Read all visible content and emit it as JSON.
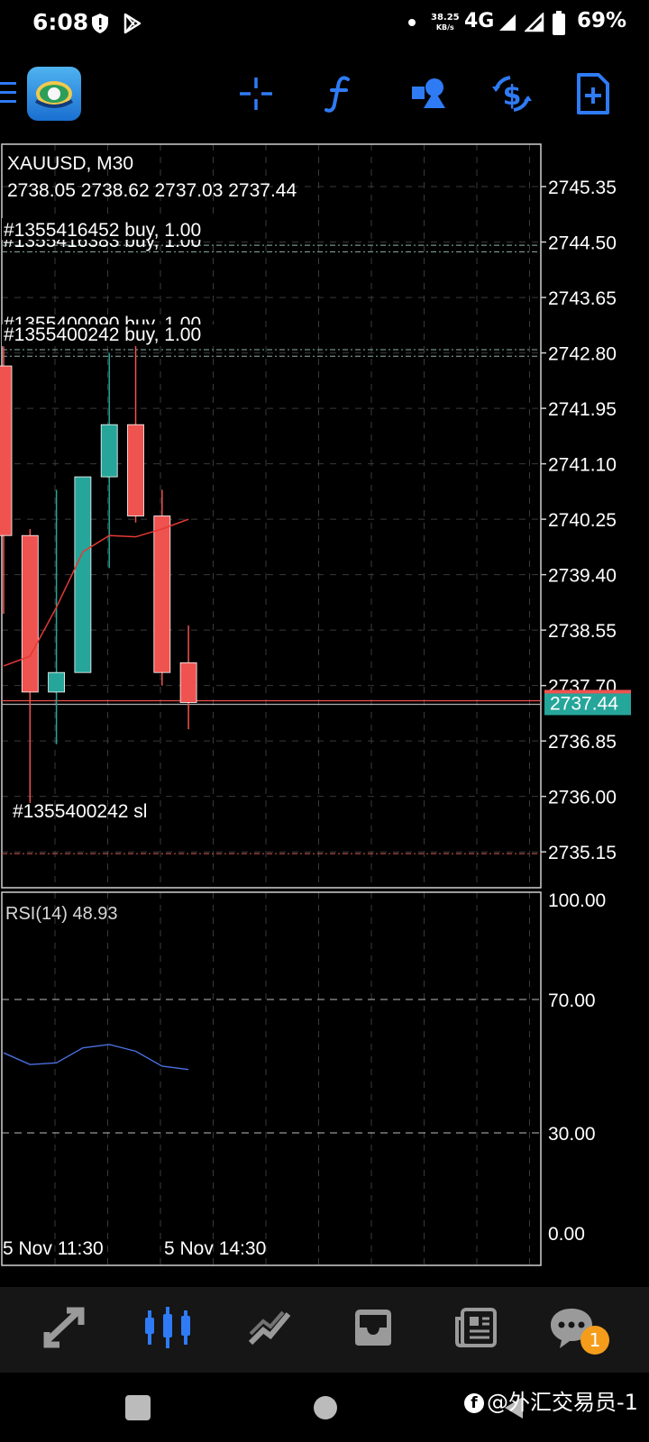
{
  "status_bar": {
    "time": "6:08",
    "speed_value": "38.25",
    "speed_unit": "KB/s",
    "network": "4G",
    "battery": "69%",
    "icons": [
      "shield-icon",
      "play-store-icon",
      "dot-icon",
      "signal-icon",
      "signal-icon",
      "battery-icon"
    ]
  },
  "toolbar": {
    "icons": [
      "menu-icon",
      "app-logo-icon",
      "crosshair-icon",
      "function-icon",
      "shapes-icon",
      "dollar-cycle-icon",
      "new-document-icon"
    ],
    "accent": "#2f7bf5"
  },
  "chart": {
    "symbol_label": "XAUUSD, M30",
    "ohlc_label": "2738.05 2738.62 2737.03 2737.44",
    "current_price": "2737.44",
    "bull_color": "#26a69a",
    "bear_color": "#ef5350",
    "order_labels": [
      {
        "text": "#1355416452 buy, 1.00"
      },
      {
        "text": "#1355416383 buy, 1.00"
      },
      {
        "text": "#1355400090 buy, 1.00"
      },
      {
        "text": "#1355400242 buy, 1.00"
      },
      {
        "text": "#1355400242 sl"
      }
    ],
    "y_axis_labels": [
      "2745.35",
      "2744.50",
      "2743.65",
      "2742.80",
      "2741.95",
      "2741.10",
      "2740.25",
      "2739.40",
      "2738.55",
      "2737.70",
      "2736.85",
      "2736.00",
      "2735.15"
    ],
    "x_axis_labels": [
      "5 Nov 11:30",
      "5 Nov 14:30"
    ]
  },
  "chart_data": {
    "type": "candlestick",
    "title": "XAUUSD, M30",
    "candles": [
      {
        "open": 2742.6,
        "high": 2742.9,
        "low": 2738.8,
        "close": 2740.0
      },
      {
        "open": 2740.0,
        "high": 2740.1,
        "low": 2735.9,
        "close": 2737.6
      },
      {
        "open": 2737.6,
        "high": 2740.7,
        "low": 2736.8,
        "close": 2737.9
      },
      {
        "open": 2737.9,
        "high": 2740.9,
        "low": 2737.9,
        "close": 2740.9
      },
      {
        "open": 2740.9,
        "high": 2742.8,
        "low": 2739.5,
        "close": 2741.7
      },
      {
        "open": 2741.7,
        "high": 2742.95,
        "low": 2740.2,
        "close": 2740.3
      },
      {
        "open": 2740.3,
        "high": 2740.7,
        "low": 2737.7,
        "close": 2737.9
      },
      {
        "open": 2738.05,
        "high": 2738.62,
        "low": 2737.03,
        "close": 2737.44
      }
    ],
    "moving_average": [
      2738.0,
      2738.15,
      2738.9,
      2739.75,
      2740.0,
      2739.98,
      2740.1,
      2740.25
    ],
    "order_levels": [
      2744.35,
      2744.45,
      2742.75,
      2742.85
    ],
    "stop_loss_level": 2735.15,
    "ylim": [
      2734.6,
      2746.0
    ],
    "rsi": {
      "label": "RSI(14) 48.93",
      "values": [
        54,
        50.5,
        51,
        55.5,
        56.5,
        54.5,
        50,
        49
      ],
      "levels": [
        70,
        30
      ],
      "ylim": [
        0,
        100
      ],
      "axis_labels": [
        "100.00",
        "70.00",
        "30.00",
        "0.00"
      ]
    }
  },
  "bottom_nav": {
    "items": [
      "trade-icon",
      "chart-icon",
      "history-icon",
      "inbox-icon",
      "news-icon",
      "messages-icon"
    ],
    "badge_count": "1"
  },
  "watermark": "@外汇交易员-1"
}
